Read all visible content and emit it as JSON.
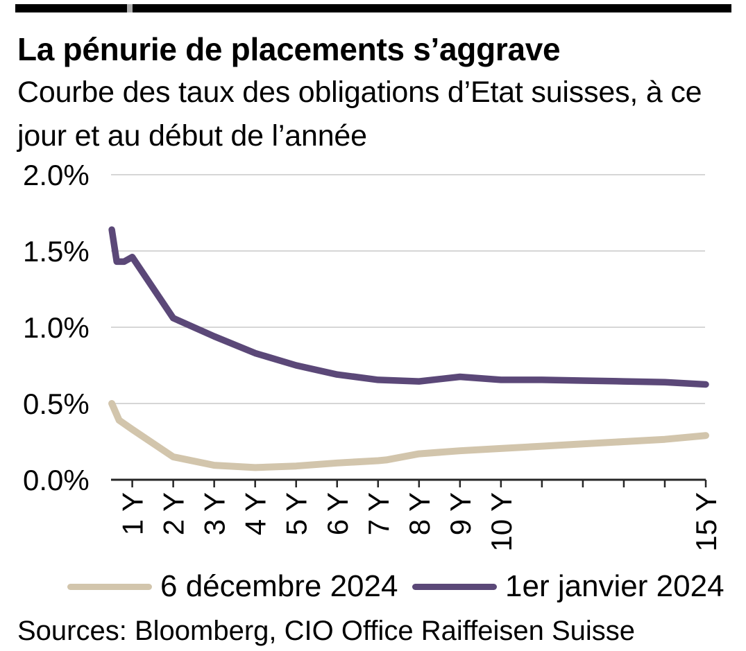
{
  "header": {
    "title": "La pénurie de placements s’aggrave",
    "subtitle_lines": [
      "Courbe des taux des obligations d’Etat suisses, à ce",
      "jour et au début de l’année"
    ]
  },
  "legend": [
    {
      "label": "6 décembre 2024",
      "color": "#d2c5ac"
    },
    {
      "label": "1er janvier 2024",
      "color": "#5b4878"
    }
  ],
  "footer": {
    "source": "Sources: Bloomberg, CIO Office Raiffeisen Suisse"
  },
  "colors": {
    "topbar": "#000000",
    "topbar_notch": "#ababab",
    "grid": "#c8c8c8",
    "axis": "#262626",
    "text": "#000000"
  },
  "chart_data": {
    "type": "line",
    "title": "La pénurie de placements s’aggrave",
    "subtitle": "Courbe des taux des obligations d’Etat suisses, à ce jour et au début de l’année",
    "xlabel": "",
    "ylabel": "",
    "x_unit": "maturity in years",
    "y_unit": "percent",
    "ylim": [
      0.0,
      2.0
    ],
    "xlim": [
      0.45,
      15.1
    ],
    "grid": "horizontal",
    "legend_position": "bottom",
    "yticks": [
      {
        "value": 2.0,
        "label": "2.0%"
      },
      {
        "value": 1.5,
        "label": "1.5%"
      },
      {
        "value": 1.0,
        "label": "1.0%"
      },
      {
        "value": 0.5,
        "label": "0.5%"
      },
      {
        "value": 0.0,
        "label": "0.0%"
      }
    ],
    "xticks": [
      {
        "value": 1,
        "label": "1 Y"
      },
      {
        "value": 2,
        "label": "2 Y"
      },
      {
        "value": 3,
        "label": "3 Y"
      },
      {
        "value": 4,
        "label": "4 Y"
      },
      {
        "value": 5,
        "label": "5 Y"
      },
      {
        "value": 6,
        "label": "6 Y"
      },
      {
        "value": 7,
        "label": "7 Y"
      },
      {
        "value": 8,
        "label": "8 Y"
      },
      {
        "value": 9,
        "label": "9 Y"
      },
      {
        "value": 10,
        "label": "10 Y"
      },
      {
        "value": 11,
        "label": ""
      },
      {
        "value": 12,
        "label": ""
      },
      {
        "value": 13,
        "label": ""
      },
      {
        "value": 14,
        "label": ""
      },
      {
        "value": 15,
        "label": "15 Y"
      }
    ],
    "series": [
      {
        "name": "6 décembre 2024",
        "color": "#d2c5ac",
        "stroke_width": 10,
        "points": [
          [
            0.5,
            0.5
          ],
          [
            0.68,
            0.39
          ],
          [
            1,
            0.33
          ],
          [
            2,
            0.15
          ],
          [
            3,
            0.095
          ],
          [
            4,
            0.08
          ],
          [
            5,
            0.09
          ],
          [
            6,
            0.11
          ],
          [
            7,
            0.125
          ],
          [
            7.2,
            0.13
          ],
          [
            8,
            0.17
          ],
          [
            9,
            0.19
          ],
          [
            10,
            0.205
          ],
          [
            11,
            0.22
          ],
          [
            12,
            0.235
          ],
          [
            13,
            0.25
          ],
          [
            14,
            0.265
          ],
          [
            15,
            0.29
          ]
        ]
      },
      {
        "name": "1er janvier 2024",
        "color": "#5b4878",
        "stroke_width": 9.5,
        "points": [
          [
            0.5,
            1.64
          ],
          [
            0.62,
            1.43
          ],
          [
            0.8,
            1.43
          ],
          [
            1,
            1.46
          ],
          [
            2,
            1.06
          ],
          [
            3,
            0.94
          ],
          [
            4,
            0.83
          ],
          [
            5,
            0.75
          ],
          [
            6,
            0.69
          ],
          [
            7,
            0.655
          ],
          [
            8,
            0.645
          ],
          [
            9,
            0.675
          ],
          [
            10,
            0.655
          ],
          [
            11,
            0.655
          ],
          [
            12,
            0.65
          ],
          [
            13,
            0.645
          ],
          [
            14,
            0.64
          ],
          [
            15,
            0.625
          ]
        ]
      }
    ]
  }
}
